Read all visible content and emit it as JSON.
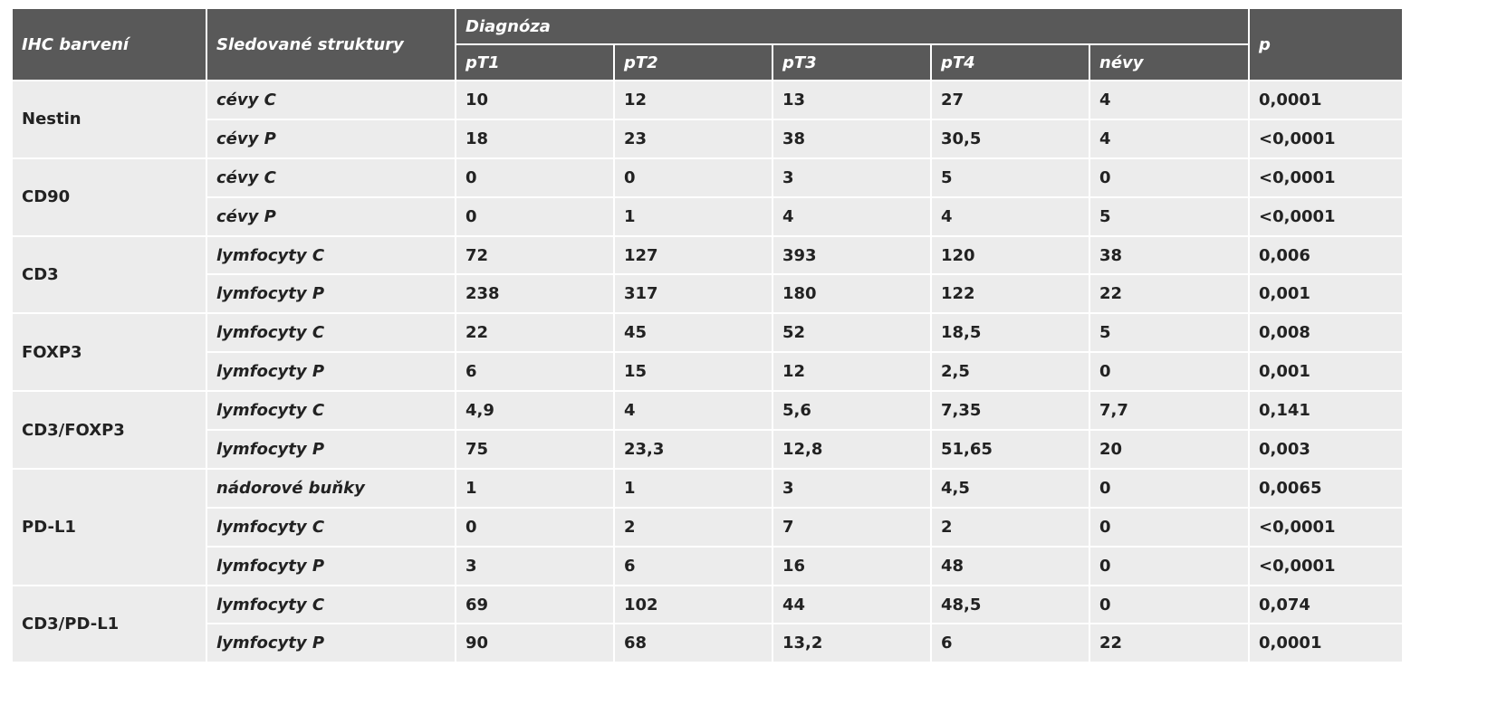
{
  "header": {
    "col1": "IHC barvení",
    "col2": "Sledované struktury",
    "group": "Diagnóza",
    "diagnoses": [
      "pT1",
      "pT2",
      "pT3",
      "pT4",
      "névy"
    ],
    "p": "p"
  },
  "groups": [
    {
      "name": "Nestin",
      "rows": [
        {
          "structure": "cévy C",
          "values": [
            "10",
            "12",
            "13",
            "27",
            "4"
          ],
          "p": "0,0001"
        },
        {
          "structure": "cévy P",
          "values": [
            "18",
            "23",
            "38",
            "30,5",
            "4"
          ],
          "p": "<0,0001"
        }
      ]
    },
    {
      "name": "CD90",
      "rows": [
        {
          "structure": "cévy C",
          "values": [
            "0",
            "0",
            "3",
            "5",
            "0"
          ],
          "p": "<0,0001"
        },
        {
          "structure": "cévy P",
          "values": [
            "0",
            "1",
            "4",
            "4",
            "5"
          ],
          "p": "<0,0001"
        }
      ]
    },
    {
      "name": "CD3",
      "rows": [
        {
          "structure": "lymfocyty C",
          "values": [
            "72",
            "127",
            "393",
            "120",
            "38"
          ],
          "p": "0,006"
        },
        {
          "structure": "lymfocyty P",
          "values": [
            "238",
            "317",
            "180",
            "122",
            "22"
          ],
          "p": "0,001"
        }
      ]
    },
    {
      "name": "FOXP3",
      "rows": [
        {
          "structure": "lymfocyty C",
          "values": [
            "22",
            "45",
            "52",
            "18,5",
            "5"
          ],
          "p": "0,008"
        },
        {
          "structure": "lymfocyty P",
          "values": [
            "6",
            "15",
            "12",
            "2,5",
            "0"
          ],
          "p": "0,001"
        }
      ]
    },
    {
      "name": "CD3/FOXP3",
      "rows": [
        {
          "structure": "lymfocyty C",
          "values": [
            "4,9",
            "4",
            "5,6",
            "7,35",
            "7,7"
          ],
          "p": "0,141"
        },
        {
          "structure": "lymfocyty P",
          "values": [
            "75",
            "23,3",
            "12,8",
            "51,65",
            "20"
          ],
          "p": "0,003"
        }
      ]
    },
    {
      "name": "PD-L1",
      "rows": [
        {
          "structure": "nádorové buňky",
          "values": [
            "1",
            "1",
            "3",
            "4,5",
            "0"
          ],
          "p": "0,0065"
        },
        {
          "structure": "lymfocyty C",
          "values": [
            "0",
            "2",
            "7",
            "2",
            "0"
          ],
          "p": "<0,0001"
        },
        {
          "structure": "lymfocyty P",
          "values": [
            "3",
            "6",
            "16",
            "48",
            "0"
          ],
          "p": "<0,0001"
        }
      ]
    },
    {
      "name": "CD3/PD-L1",
      "rows": [
        {
          "structure": "lymfocyty C",
          "values": [
            "69",
            "102",
            "44",
            "48,5",
            "0"
          ],
          "p": "0,074"
        },
        {
          "structure": "lymfocyty P",
          "values": [
            "90",
            "68",
            "13,2",
            "6",
            "22"
          ],
          "p": "0,0001"
        }
      ]
    }
  ]
}
